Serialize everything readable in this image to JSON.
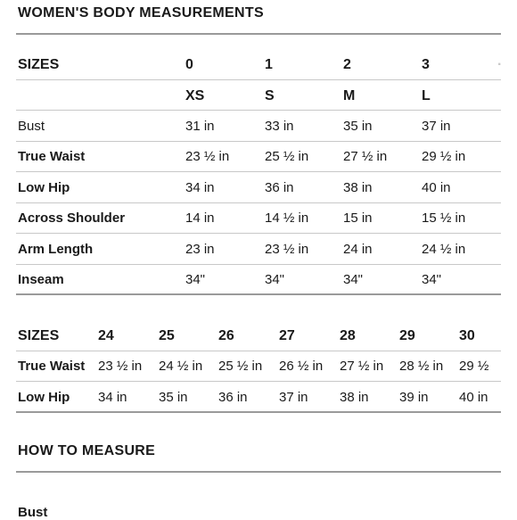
{
  "title": "WOMEN'S BODY MEASUREMENTS",
  "table1": {
    "header_label": "SIZES",
    "sizes": [
      "0",
      "1",
      "2",
      "3"
    ],
    "letter_sizes": [
      "XS",
      "S",
      "M",
      "L"
    ],
    "rows": [
      {
        "label": "Bust",
        "values": [
          "31 in",
          "33 in",
          "35 in",
          "37 in"
        ]
      },
      {
        "label": "True Waist",
        "values": [
          "23 ½ in",
          "25 ½ in",
          "27 ½ in",
          "29 ½ in"
        ]
      },
      {
        "label": "Low Hip",
        "values": [
          "34 in",
          "36 in",
          "38 in",
          "40 in"
        ]
      },
      {
        "label": "Across Shoulder",
        "values": [
          "14 in",
          "14 ½ in",
          "15 in",
          "15 ½ in"
        ]
      },
      {
        "label": "Arm Length",
        "values": [
          "23 in",
          "23 ½ in",
          "24 in",
          "24 ½ in"
        ]
      },
      {
        "label": "Inseam",
        "values": [
          "34\"",
          "34\"",
          "34\"",
          "34\""
        ]
      }
    ]
  },
  "table2": {
    "header_label": "SIZES",
    "sizes": [
      "24",
      "25",
      "26",
      "27",
      "28",
      "29",
      "30"
    ],
    "rows": [
      {
        "label": "True Waist",
        "values": [
          "23 ½ in",
          "24 ½ in",
          "25 ½ in",
          "26 ½ in",
          "27 ½ in",
          "28 ½ in",
          "29 ½"
        ]
      },
      {
        "label": "Low Hip",
        "values": [
          "34 in",
          "35 in",
          "36 in",
          "37 in",
          "38 in",
          "39 in",
          "40 in"
        ]
      }
    ]
  },
  "how_to": {
    "title": "HOW TO MEASURE",
    "first_item": "Bust"
  }
}
